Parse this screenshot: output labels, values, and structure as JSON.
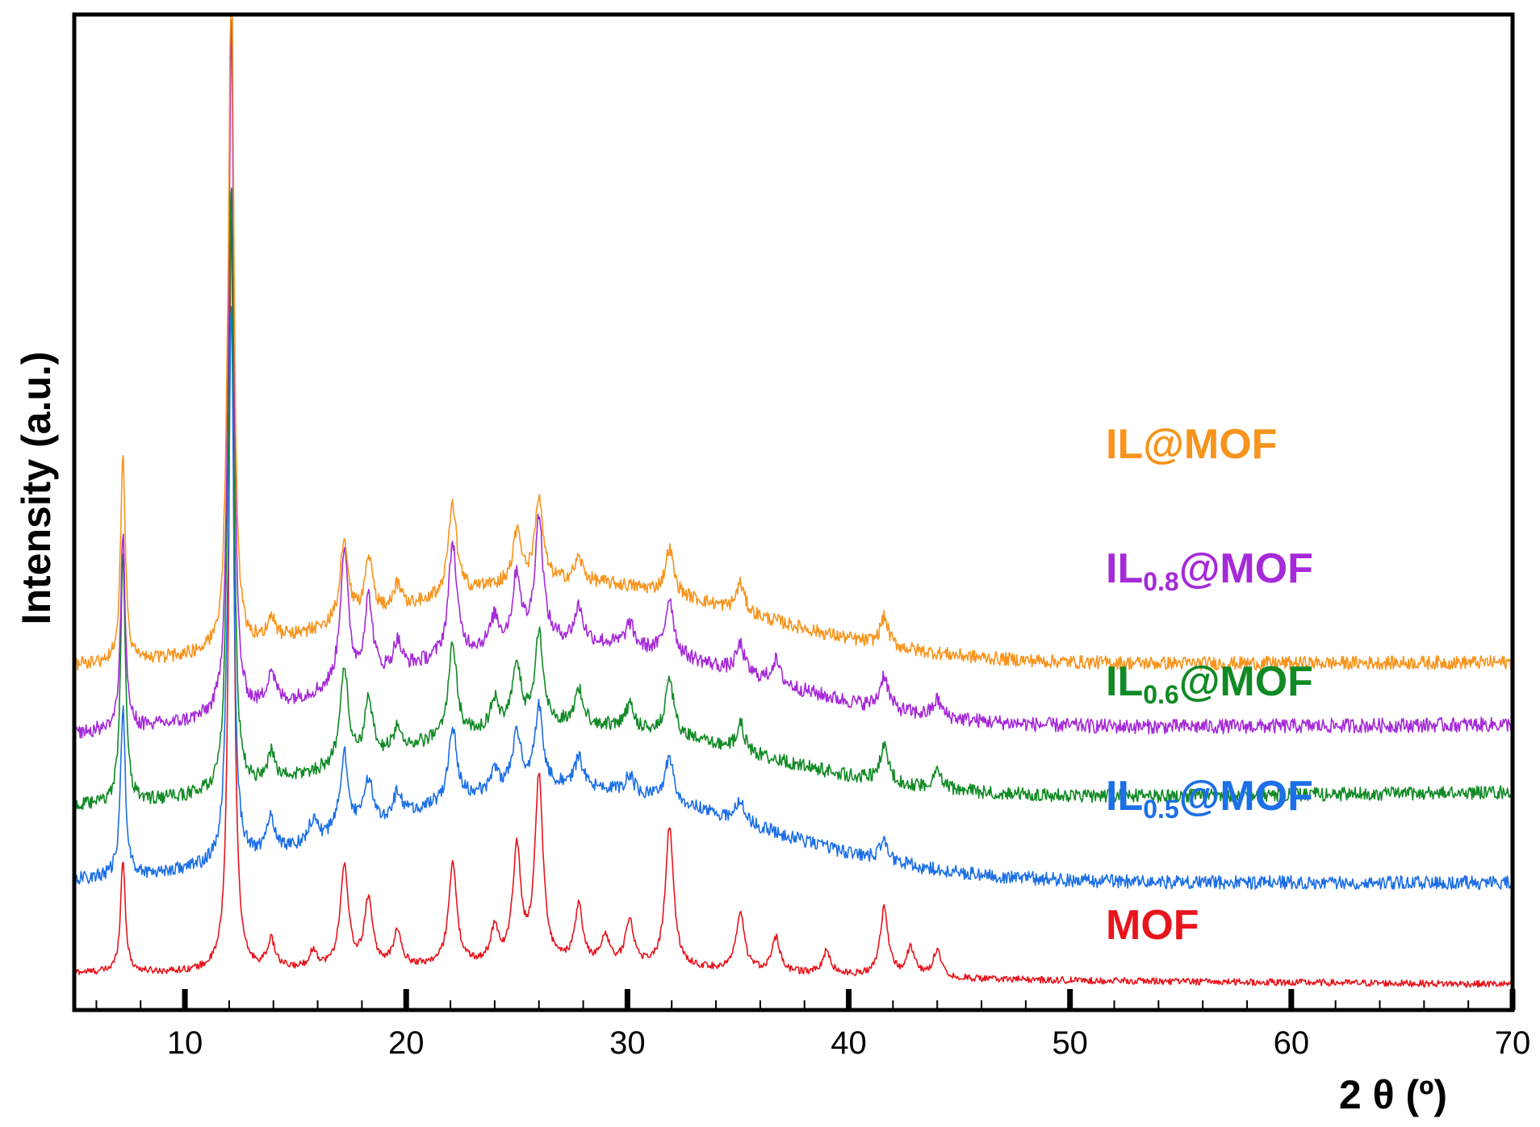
{
  "chart_data": {
    "type": "line",
    "title": "",
    "xlabel": "2 θ (º)",
    "ylabel": "Intensity (a.u.)",
    "xlim": [
      5,
      70
    ],
    "x_major_ticks": [
      10,
      20,
      30,
      40,
      50,
      60,
      70
    ],
    "x_tick_labels": [
      "10",
      "20",
      "30",
      "40",
      "50",
      "60",
      "70"
    ],
    "x_minor_tick_step": 2,
    "y_ticks": "none",
    "grid": false,
    "legend": "inline labels at right",
    "series": [
      {
        "name": "MOF",
        "label_main": "MOF",
        "label_sub": "",
        "label_tail": "",
        "color": "#e8141c",
        "baseline_start": 0.04,
        "baseline_end": 0.02,
        "hump_height": 0.02,
        "noise": 0.006,
        "peaks": [
          [
            7.2,
            0.2
          ],
          [
            12.1,
            1.35
          ],
          [
            13.9,
            0.05
          ],
          [
            15.8,
            0.03
          ],
          [
            17.2,
            0.18
          ],
          [
            18.3,
            0.12
          ],
          [
            19.6,
            0.06
          ],
          [
            22.1,
            0.18
          ],
          [
            24.0,
            0.06
          ],
          [
            25.0,
            0.2
          ],
          [
            26.0,
            0.33
          ],
          [
            27.8,
            0.1
          ],
          [
            29.0,
            0.05
          ],
          [
            30.1,
            0.08
          ],
          [
            31.9,
            0.25
          ],
          [
            35.1,
            0.1
          ],
          [
            36.7,
            0.06
          ],
          [
            39.0,
            0.04
          ],
          [
            41.6,
            0.12
          ],
          [
            42.8,
            0.05
          ],
          [
            44.0,
            0.05
          ]
        ]
      },
      {
        "name": "IL0.5@MOF",
        "label_main": "IL",
        "label_sub": "0.5",
        "label_tail": "@MOF",
        "color": "#1c6fe6",
        "baseline_start": 0.2,
        "baseline_end": 0.2,
        "hump_height": 0.17,
        "noise": 0.012,
        "peaks": [
          [
            7.2,
            0.3
          ],
          [
            11.9,
            0.15
          ],
          [
            12.1,
            0.95
          ],
          [
            13.9,
            0.06
          ],
          [
            15.8,
            0.04
          ],
          [
            17.2,
            0.14
          ],
          [
            18.3,
            0.08
          ],
          [
            19.6,
            0.04
          ],
          [
            22.1,
            0.13
          ],
          [
            24.0,
            0.04
          ],
          [
            25.0,
            0.1
          ],
          [
            26.0,
            0.14
          ],
          [
            27.8,
            0.05
          ],
          [
            30.1,
            0.03
          ],
          [
            31.9,
            0.08
          ],
          [
            35.1,
            0.04
          ],
          [
            41.6,
            0.04
          ]
        ]
      },
      {
        "name": "IL0.6@MOF",
        "label_main": "IL",
        "label_sub": "0.6",
        "label_tail": "@MOF",
        "color": "#118a25",
        "baseline_start": 0.33,
        "baseline_end": 0.36,
        "hump_height": 0.14,
        "noise": 0.012,
        "peaks": [
          [
            7.2,
            0.45
          ],
          [
            11.9,
            0.15
          ],
          [
            12.1,
            1.03
          ],
          [
            13.9,
            0.05
          ],
          [
            17.2,
            0.17
          ],
          [
            18.3,
            0.1
          ],
          [
            19.6,
            0.04
          ],
          [
            22.1,
            0.17
          ],
          [
            24.0,
            0.05
          ],
          [
            25.0,
            0.11
          ],
          [
            26.0,
            0.16
          ],
          [
            27.8,
            0.06
          ],
          [
            30.1,
            0.04
          ],
          [
            31.9,
            0.1
          ],
          [
            35.1,
            0.05
          ],
          [
            41.6,
            0.06
          ],
          [
            44.0,
            0.03
          ]
        ]
      },
      {
        "name": "IL0.8@MOF",
        "label_main": "IL",
        "label_sub": "0.8",
        "label_tail": "@MOF",
        "color": "#a52ad8",
        "baseline_start": 0.46,
        "baseline_end": 0.48,
        "hump_height": 0.16,
        "noise": 0.013,
        "peaks": [
          [
            7.2,
            0.34
          ],
          [
            11.9,
            0.1
          ],
          [
            12.1,
            1.2
          ],
          [
            13.9,
            0.06
          ],
          [
            17.2,
            0.24
          ],
          [
            18.3,
            0.14
          ],
          [
            19.6,
            0.05
          ],
          [
            22.1,
            0.2
          ],
          [
            24.0,
            0.05
          ],
          [
            25.0,
            0.12
          ],
          [
            26.0,
            0.22
          ],
          [
            27.8,
            0.06
          ],
          [
            30.1,
            0.04
          ],
          [
            31.9,
            0.1
          ],
          [
            35.1,
            0.05
          ],
          [
            36.7,
            0.04
          ],
          [
            41.6,
            0.06
          ],
          [
            44.0,
            0.03
          ]
        ]
      },
      {
        "name": "IL@MOF",
        "label_main": "IL@MOF",
        "label_sub": "",
        "label_tail": "",
        "color": "#f7941d",
        "baseline_start": 0.58,
        "baseline_end": 0.59,
        "hump_height": 0.15,
        "noise": 0.012,
        "peaks": [
          [
            7.2,
            0.36
          ],
          [
            11.9,
            0.12
          ],
          [
            12.1,
            1.25
          ],
          [
            13.9,
            0.04
          ],
          [
            17.2,
            0.14
          ],
          [
            18.3,
            0.1
          ],
          [
            19.6,
            0.04
          ],
          [
            22.1,
            0.16
          ],
          [
            25.0,
            0.09
          ],
          [
            26.0,
            0.14
          ],
          [
            27.8,
            0.04
          ],
          [
            31.9,
            0.08
          ],
          [
            35.1,
            0.05
          ],
          [
            41.6,
            0.05
          ]
        ]
      }
    ]
  }
}
